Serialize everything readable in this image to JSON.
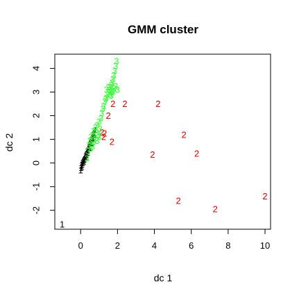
{
  "chart_data": {
    "type": "scatter",
    "title": "GMM cluster",
    "xlabel": "dc 1",
    "ylabel": "dc 2",
    "xlim": [
      -1.4,
      10.3
    ],
    "ylim": [
      -2.8,
      4.6
    ],
    "xticks": [
      0,
      2,
      4,
      6,
      8,
      10
    ],
    "yticks": [
      -2,
      -1,
      0,
      1,
      2,
      3,
      4
    ],
    "grid": false,
    "legend": "none",
    "series": [
      {
        "label": "1",
        "color": "#000000",
        "points": [
          [
            -1.0,
            -2.6
          ],
          [
            0.0,
            -0.3
          ],
          [
            0.02,
            -0.2
          ],
          [
            0.05,
            -0.1
          ],
          [
            0.08,
            -0.05
          ],
          [
            0.1,
            0.0
          ],
          [
            0.13,
            0.05
          ],
          [
            0.16,
            0.1
          ],
          [
            0.2,
            0.15
          ],
          [
            0.23,
            0.2
          ],
          [
            0.26,
            0.3
          ],
          [
            0.3,
            0.35
          ],
          [
            0.33,
            0.4
          ],
          [
            0.36,
            0.5
          ],
          [
            0.4,
            0.55
          ],
          [
            0.43,
            0.6
          ],
          [
            0.46,
            0.7
          ],
          [
            0.5,
            0.8
          ],
          [
            0.53,
            0.85
          ],
          [
            0.56,
            0.9
          ],
          [
            0.6,
            1.0
          ],
          [
            0.63,
            1.05
          ],
          [
            0.66,
            1.1
          ],
          [
            0.7,
            1.2
          ],
          [
            0.73,
            1.25
          ],
          [
            0.76,
            1.3
          ],
          [
            0.8,
            1.4
          ],
          [
            0.06,
            -0.15
          ],
          [
            0.18,
            0.05
          ],
          [
            0.28,
            0.25
          ],
          [
            0.38,
            0.45
          ],
          [
            0.48,
            0.65
          ],
          [
            0.58,
            0.85
          ],
          [
            0.68,
            1.05
          ]
        ]
      },
      {
        "label": "2",
        "color": "#DF0000",
        "points": [
          [
            1.15,
            1.3
          ],
          [
            1.25,
            1.1
          ],
          [
            1.3,
            1.25
          ],
          [
            1.5,
            2.0
          ],
          [
            1.7,
            0.9
          ],
          [
            1.75,
            2.5
          ],
          [
            2.4,
            2.5
          ],
          [
            4.2,
            2.5
          ],
          [
            3.9,
            0.35
          ],
          [
            5.6,
            1.2
          ],
          [
            6.3,
            0.4
          ],
          [
            5.3,
            -1.6
          ],
          [
            7.3,
            -1.95
          ],
          [
            10.0,
            -1.4
          ]
        ]
      },
      {
        "label": "3",
        "color": "#33FF33",
        "points": [
          [
            0.35,
            0.2
          ],
          [
            0.4,
            0.5
          ],
          [
            0.45,
            0.75
          ],
          [
            0.5,
            0.95
          ],
          [
            0.55,
            1.1
          ],
          [
            0.6,
            0.8
          ],
          [
            0.65,
            1.2
          ],
          [
            0.7,
            1.35
          ],
          [
            0.75,
            1.0
          ],
          [
            0.8,
            1.5
          ],
          [
            0.85,
            1.3
          ],
          [
            0.9,
            1.6
          ],
          [
            0.95,
            1.2
          ],
          [
            1.0,
            1.75
          ],
          [
            1.05,
            1.45
          ],
          [
            1.1,
            1.9
          ],
          [
            1.15,
            2.1
          ],
          [
            1.2,
            2.3
          ],
          [
            1.25,
            2.4
          ],
          [
            1.3,
            2.6
          ],
          [
            1.35,
            2.7
          ],
          [
            1.4,
            2.75
          ],
          [
            1.45,
            2.9
          ],
          [
            1.5,
            3.0
          ],
          [
            1.55,
            3.1
          ],
          [
            1.6,
            3.2
          ],
          [
            1.65,
            3.3
          ],
          [
            1.7,
            3.4
          ],
          [
            1.75,
            3.55
          ],
          [
            1.8,
            3.7
          ],
          [
            1.85,
            3.9
          ],
          [
            1.9,
            4.1
          ],
          [
            1.95,
            4.3
          ],
          [
            1.6,
            2.9
          ],
          [
            1.7,
            3.05
          ],
          [
            1.8,
            3.15
          ],
          [
            1.9,
            3.25
          ],
          [
            2.0,
            3.1
          ],
          [
            1.5,
            3.2
          ],
          [
            1.4,
            3.1
          ],
          [
            1.75,
            3.0
          ],
          [
            1.65,
            2.85
          ],
          [
            0.7,
            0.9
          ],
          [
            0.9,
            0.95
          ],
          [
            1.0,
            1.1
          ],
          [
            0.55,
            0.6
          ],
          [
            0.65,
            0.7
          ]
        ]
      }
    ]
  }
}
